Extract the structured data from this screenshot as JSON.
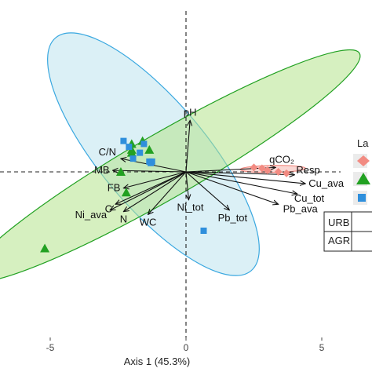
{
  "chart_data": {
    "type": "scatter",
    "title": "",
    "xlabel": "Axis 1 (45.3%)",
    "ylabel": "",
    "xlim": [
      -6.5,
      6.5
    ],
    "ylim": [
      -5.5,
      5.8
    ],
    "x_ticks": [
      -5,
      0,
      5
    ],
    "x_tick_labels": [
      "-5",
      "0",
      "5"
    ],
    "reference_lines": {
      "x": 0,
      "y": 0,
      "style": "dashed"
    },
    "colors": {
      "red": "#f28b82",
      "green": "#22a122",
      "blue": "#2f8fdc",
      "ellipse_green_fill": "#b5e48c",
      "ellipse_blue_fill": "#bde4ef"
    },
    "legend": {
      "title_fragment": "La",
      "placement": "right (cropped)",
      "table_rows": [
        "URB",
        "AGR"
      ]
    },
    "groups": [
      {
        "marker": "diamond",
        "color": "#f28b82",
        "points": [
          [
            2.8,
            0.12
          ],
          [
            3.0,
            0.05
          ],
          [
            3.4,
            0.0
          ],
          [
            3.7,
            -0.05
          ],
          [
            2.5,
            0.15
          ]
        ],
        "ellipse": {
          "cx": 3.2,
          "cy": 0.1,
          "rx": 1.2,
          "ry": 0.12,
          "angle_deg": 1
        }
      },
      {
        "marker": "triangle",
        "color": "#22a122",
        "points": [
          [
            -2.0,
            0.95
          ],
          [
            -1.6,
            1.05
          ],
          [
            -1.35,
            0.75
          ],
          [
            -2.0,
            0.75
          ],
          [
            -2.0,
            0.65
          ],
          [
            -2.2,
            -0.7
          ],
          [
            -2.4,
            0.0
          ],
          [
            -5.2,
            -2.6
          ]
        ],
        "ellipse": {
          "cx": -0.8,
          "cy": 0.2,
          "rx": 8.3,
          "ry": 1.1,
          "angle_deg": 30
        }
      },
      {
        "marker": "square",
        "color": "#2f8fdc",
        "points": [
          [
            -2.3,
            1.05
          ],
          [
            -1.55,
            0.95
          ],
          [
            -1.95,
            0.45
          ],
          [
            -1.25,
            0.35
          ],
          [
            -1.35,
            0.35
          ],
          [
            -1.3,
            0.3
          ],
          [
            -2.1,
            0.85
          ],
          [
            -1.7,
            0.65
          ],
          [
            0.65,
            -2.0
          ]
        ],
        "ellipse": {
          "cx": -1.2,
          "cy": 0.6,
          "rx": 5.6,
          "ry": 1.8,
          "angle_deg": -50
        }
      }
    ],
    "loadings": [
      {
        "label": "pH",
        "x": 0.15,
        "y": 1.75
      },
      {
        "label": "C/N",
        "x": -2.4,
        "y": 0.45
      },
      {
        "label": "MB",
        "x": -2.7,
        "y": 0.05
      },
      {
        "label": "FB",
        "x": -2.3,
        "y": -0.55
      },
      {
        "label": "C",
        "x": -2.6,
        "y": -1.1
      },
      {
        "label": "Ni_ava",
        "x": -2.8,
        "y": -1.3
      },
      {
        "label": "N",
        "x": -2.3,
        "y": -1.35
      },
      {
        "label": "WC",
        "x": -1.4,
        "y": -1.45
      },
      {
        "label": "Ni_tot",
        "x": 0.1,
        "y": -0.95
      },
      {
        "label": "Pb_tot",
        "x": 1.6,
        "y": -1.3
      },
      {
        "label": "Pb_ava",
        "x": 3.4,
        "y": -1.1
      },
      {
        "label": "Cu_tot",
        "x": 4.1,
        "y": -0.75
      },
      {
        "label": "Cu_ava",
        "x": 4.4,
        "y": -0.4
      },
      {
        "label": "Resp",
        "x": 4.0,
        "y": -0.1
      },
      {
        "label": "qCO₂",
        "x": 3.3,
        "y": 0.15
      }
    ]
  }
}
